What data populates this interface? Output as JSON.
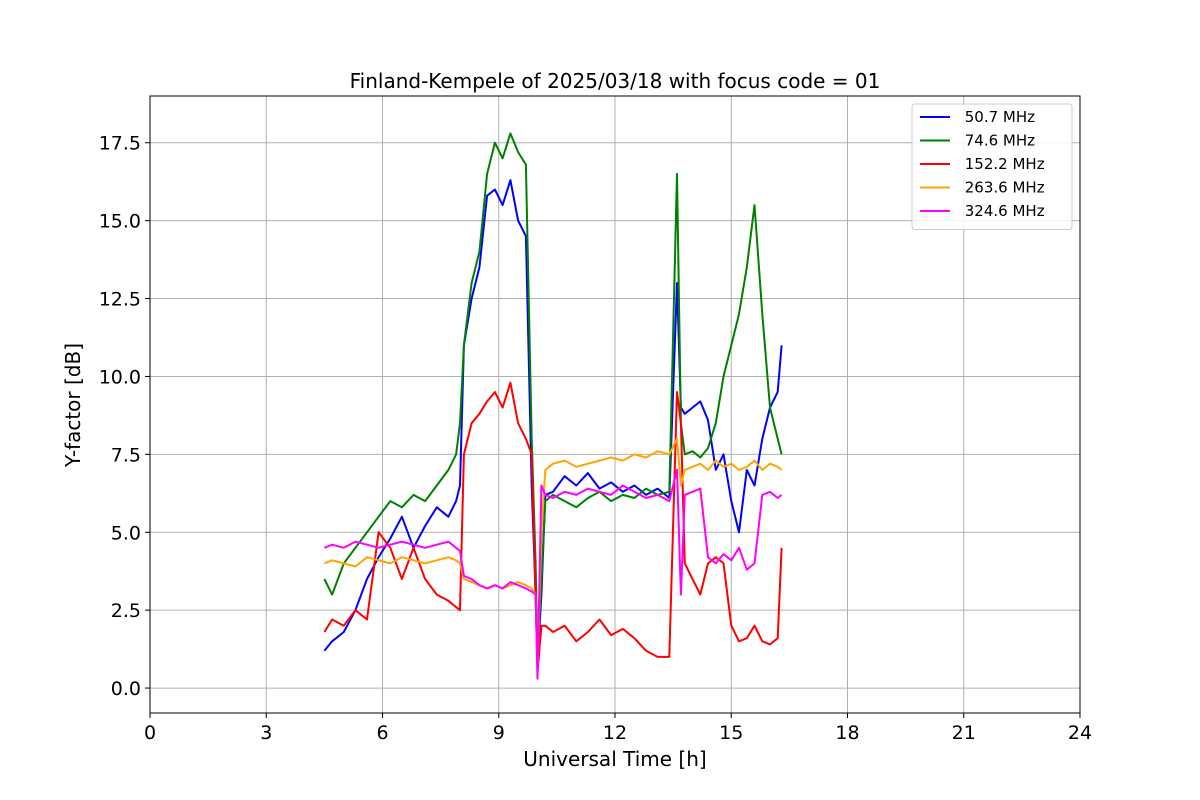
{
  "chart_data": {
    "type": "line",
    "title": "Finland-Kempele of 2025/03/18 with focus code = 01",
    "xlabel": "Universal Time [h]",
    "ylabel": "Y-factor [dB]",
    "xlim": [
      0,
      24
    ],
    "ylim": [
      -0.8,
      19.0
    ],
    "xticks": [
      0,
      3,
      6,
      9,
      12,
      15,
      18,
      21,
      24
    ],
    "xtick_labels": [
      "0",
      "3",
      "6",
      "9",
      "12",
      "15",
      "18",
      "21",
      "24"
    ],
    "yticks": [
      0.0,
      2.5,
      5.0,
      7.5,
      10.0,
      12.5,
      15.0,
      17.5
    ],
    "ytick_labels": [
      "0.0",
      "2.5",
      "5.0",
      "7.5",
      "10.0",
      "12.5",
      "15.0",
      "17.5"
    ],
    "grid": true,
    "legend_position": "top-right",
    "series": [
      {
        "name": " 50.7 MHz",
        "color": "#0000ff",
        "x": [
          4.5,
          4.7,
          5.0,
          5.3,
          5.6,
          5.9,
          6.2,
          6.5,
          6.8,
          7.1,
          7.4,
          7.7,
          7.9,
          8.0,
          8.1,
          8.3,
          8.5,
          8.7,
          8.9,
          9.1,
          9.3,
          9.5,
          9.7,
          9.85,
          9.95,
          10.0,
          10.1,
          10.2,
          10.4,
          10.7,
          11.0,
          11.3,
          11.6,
          11.9,
          12.2,
          12.5,
          12.8,
          13.1,
          13.4,
          13.6,
          13.7,
          13.8,
          14.0,
          14.2,
          14.4,
          14.6,
          14.8,
          15.0,
          15.2,
          15.4,
          15.6,
          15.8,
          16.0,
          16.2,
          16.3
        ],
        "y": [
          1.2,
          1.5,
          1.8,
          2.5,
          3.5,
          4.2,
          4.8,
          5.5,
          4.5,
          5.2,
          5.8,
          5.5,
          6.0,
          6.5,
          11.0,
          12.5,
          13.5,
          15.8,
          16.0,
          15.5,
          16.3,
          15.0,
          14.5,
          6.5,
          3.0,
          0.8,
          3.0,
          6.2,
          6.3,
          6.8,
          6.5,
          6.9,
          6.4,
          6.6,
          6.3,
          6.5,
          6.2,
          6.4,
          6.1,
          13.0,
          9.0,
          8.8,
          9.0,
          9.2,
          8.6,
          7.0,
          7.5,
          6.0,
          5.0,
          7.0,
          6.5,
          8.0,
          9.0,
          9.5,
          11.0
        ]
      },
      {
        "name": " 74.6 MHz",
        "color": "#008000",
        "x": [
          4.5,
          4.7,
          5.0,
          5.3,
          5.6,
          5.9,
          6.2,
          6.5,
          6.8,
          7.1,
          7.4,
          7.7,
          7.9,
          8.0,
          8.1,
          8.3,
          8.5,
          8.7,
          8.9,
          9.1,
          9.3,
          9.5,
          9.7,
          9.85,
          9.95,
          10.0,
          10.1,
          10.2,
          10.4,
          10.7,
          11.0,
          11.3,
          11.6,
          11.9,
          12.2,
          12.5,
          12.8,
          13.1,
          13.4,
          13.6,
          13.7,
          13.8,
          14.0,
          14.2,
          14.4,
          14.6,
          14.8,
          15.0,
          15.2,
          15.4,
          15.6,
          15.8,
          16.0,
          16.2,
          16.3
        ],
        "y": [
          3.5,
          3.0,
          4.0,
          4.5,
          5.0,
          5.5,
          6.0,
          5.8,
          6.2,
          6.0,
          6.5,
          7.0,
          7.5,
          8.5,
          11.0,
          13.0,
          14.0,
          16.5,
          17.5,
          17.0,
          17.8,
          17.2,
          16.8,
          8.0,
          4.0,
          1.0,
          3.5,
          6.0,
          6.2,
          6.0,
          5.8,
          6.1,
          6.3,
          6.0,
          6.2,
          6.1,
          6.4,
          6.2,
          6.3,
          16.5,
          8.5,
          7.5,
          7.6,
          7.4,
          7.7,
          8.5,
          10.0,
          11.0,
          12.0,
          13.5,
          15.5,
          12.0,
          9.0,
          8.0,
          7.5
        ]
      },
      {
        "name": " 152.2 MHz",
        "color": "#ff0000",
        "x": [
          4.5,
          4.7,
          5.0,
          5.3,
          5.6,
          5.9,
          6.2,
          6.5,
          6.8,
          7.1,
          7.4,
          7.7,
          7.9,
          8.0,
          8.1,
          8.3,
          8.5,
          8.7,
          8.9,
          9.1,
          9.3,
          9.5,
          9.7,
          9.85,
          9.95,
          10.0,
          10.1,
          10.2,
          10.4,
          10.7,
          11.0,
          11.3,
          11.6,
          11.9,
          12.2,
          12.5,
          12.8,
          13.1,
          13.4,
          13.6,
          13.7,
          13.8,
          14.0,
          14.2,
          14.4,
          14.6,
          14.8,
          15.0,
          15.2,
          15.4,
          15.6,
          15.8,
          16.0,
          16.2,
          16.3
        ],
        "y": [
          1.8,
          2.2,
          2.0,
          2.5,
          2.2,
          5.0,
          4.5,
          3.5,
          4.5,
          3.5,
          3.0,
          2.8,
          2.6,
          2.5,
          7.5,
          8.5,
          8.8,
          9.2,
          9.5,
          9.0,
          9.8,
          8.5,
          8.0,
          7.5,
          3.0,
          0.5,
          2.0,
          2.0,
          1.8,
          2.0,
          1.5,
          1.8,
          2.2,
          1.7,
          1.9,
          1.6,
          1.2,
          1.0,
          1.0,
          9.5,
          8.5,
          4.0,
          3.5,
          3.0,
          4.0,
          4.2,
          4.0,
          2.0,
          1.5,
          1.6,
          2.0,
          1.5,
          1.4,
          1.6,
          4.5
        ]
      },
      {
        "name": " 263.6 MHz",
        "color": "#ffa500",
        "x": [
          4.5,
          4.7,
          5.0,
          5.3,
          5.6,
          5.9,
          6.2,
          6.5,
          6.8,
          7.1,
          7.4,
          7.7,
          7.9,
          8.0,
          8.1,
          8.3,
          8.5,
          8.7,
          8.9,
          9.1,
          9.3,
          9.5,
          9.7,
          9.85,
          9.95,
          10.0,
          10.1,
          10.2,
          10.4,
          10.7,
          11.0,
          11.3,
          11.6,
          11.9,
          12.2,
          12.5,
          12.8,
          13.1,
          13.4,
          13.6,
          13.7,
          13.8,
          14.0,
          14.2,
          14.4,
          14.6,
          14.8,
          15.0,
          15.2,
          15.4,
          15.6,
          15.8,
          16.0,
          16.2,
          16.3
        ],
        "y": [
          4.0,
          4.1,
          4.0,
          3.9,
          4.2,
          4.1,
          4.0,
          4.2,
          4.1,
          4.0,
          4.1,
          4.2,
          4.1,
          4.0,
          3.5,
          3.4,
          3.3,
          3.2,
          3.3,
          3.2,
          3.3,
          3.4,
          3.3,
          3.2,
          3.0,
          0.5,
          5.0,
          7.0,
          7.2,
          7.3,
          7.1,
          7.2,
          7.3,
          7.4,
          7.3,
          7.5,
          7.4,
          7.6,
          7.5,
          8.0,
          6.5,
          7.0,
          7.1,
          7.2,
          7.0,
          7.3,
          7.1,
          7.2,
          7.0,
          7.1,
          7.3,
          7.0,
          7.2,
          7.1,
          7.0
        ]
      },
      {
        "name": " 324.6 MHz",
        "color": "#ff00ff",
        "x": [
          4.5,
          4.7,
          5.0,
          5.3,
          5.6,
          5.9,
          6.2,
          6.5,
          6.8,
          7.1,
          7.4,
          7.7,
          7.9,
          8.0,
          8.1,
          8.3,
          8.5,
          8.7,
          8.9,
          9.1,
          9.3,
          9.5,
          9.7,
          9.85,
          9.95,
          10.0,
          10.1,
          10.2,
          10.4,
          10.7,
          11.0,
          11.3,
          11.6,
          11.9,
          12.2,
          12.5,
          12.8,
          13.1,
          13.4,
          13.6,
          13.7,
          13.8,
          14.0,
          14.2,
          14.4,
          14.6,
          14.8,
          15.0,
          15.2,
          15.4,
          15.6,
          15.8,
          16.0,
          16.2,
          16.3
        ],
        "y": [
          4.5,
          4.6,
          4.5,
          4.7,
          4.6,
          4.5,
          4.6,
          4.7,
          4.6,
          4.5,
          4.6,
          4.7,
          4.5,
          4.4,
          3.6,
          3.5,
          3.3,
          3.2,
          3.3,
          3.2,
          3.4,
          3.3,
          3.2,
          3.1,
          3.0,
          0.3,
          6.5,
          6.2,
          6.1,
          6.3,
          6.2,
          6.4,
          6.3,
          6.2,
          6.5,
          6.3,
          6.1,
          6.2,
          6.0,
          7.0,
          3.0,
          6.2,
          6.3,
          6.4,
          4.2,
          4.0,
          4.3,
          4.1,
          4.5,
          3.8,
          4.0,
          6.2,
          6.3,
          6.1,
          6.2
        ]
      }
    ]
  }
}
